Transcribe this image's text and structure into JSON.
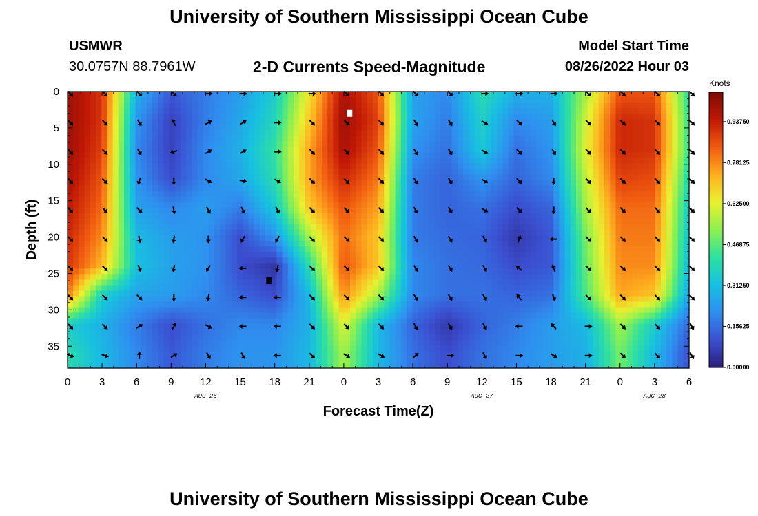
{
  "header": {
    "title": "University of Southern Mississippi Ocean Cube",
    "station_id": "USMWR",
    "station_coords": "30.0757N  88.7961W",
    "model_start_label": "Model Start Time",
    "model_start_value": "08/26/2022 Hour 03",
    "subtitle": "2-D Currents Speed-Magnitude"
  },
  "footer": {
    "title": "University of Southern Mississippi Ocean Cube"
  },
  "colors": {
    "palette": [
      "#2b1e7a",
      "#3b4fd0",
      "#2f8ff0",
      "#17c0e0",
      "#2ee0a0",
      "#8ef050",
      "#e8f030",
      "#ffb020",
      "#f05a10",
      "#c01806",
      "#7a0c06"
    ]
  },
  "chart_data": {
    "type": "heatmap",
    "title": "2-D Currents Speed-Magnitude",
    "xlabel": "Forecast Time(Z)",
    "ylabel": "Depth (ft)",
    "units_label": "Knots",
    "x_range_hours": [
      0,
      54
    ],
    "x_ticks": [
      {
        "hour": 0,
        "label": "0"
      },
      {
        "hour": 3,
        "label": "3"
      },
      {
        "hour": 6,
        "label": "6"
      },
      {
        "hour": 9,
        "label": "9"
      },
      {
        "hour": 12,
        "label": "12"
      },
      {
        "hour": 15,
        "label": "15"
      },
      {
        "hour": 18,
        "label": "18"
      },
      {
        "hour": 21,
        "label": "21"
      },
      {
        "hour": 24,
        "label": "0"
      },
      {
        "hour": 27,
        "label": "3"
      },
      {
        "hour": 30,
        "label": "6"
      },
      {
        "hour": 33,
        "label": "9"
      },
      {
        "hour": 36,
        "label": "12"
      },
      {
        "hour": 39,
        "label": "15"
      },
      {
        "hour": 42,
        "label": "18"
      },
      {
        "hour": 45,
        "label": "21"
      },
      {
        "hour": 48,
        "label": "0"
      },
      {
        "hour": 51,
        "label": "3"
      },
      {
        "hour": 54,
        "label": "6"
      }
    ],
    "date_labels": [
      {
        "hour": 12,
        "label": "AUG 26"
      },
      {
        "hour": 36,
        "label": "AUG 27"
      },
      {
        "hour": 51,
        "label": "AUG 28"
      }
    ],
    "y_range_ft": [
      0,
      38
    ],
    "y_ticks": [
      0,
      5,
      10,
      15,
      20,
      25,
      30,
      35
    ],
    "colorbar": {
      "range": [
        0,
        1.05
      ],
      "ticks": [
        {
          "value": 0.0,
          "label": "0.00000"
        },
        {
          "value": 0.15625,
          "label": "0.15625"
        },
        {
          "value": 0.3125,
          "label": "0.31250"
        },
        {
          "value": 0.46875,
          "label": "0.46875"
        },
        {
          "value": 0.625,
          "label": "0.62500"
        },
        {
          "value": 0.78125,
          "label": "0.78125"
        },
        {
          "value": 0.9375,
          "label": "0.93750"
        }
      ]
    },
    "speed_grid": {
      "x_hours": [
        0,
        3,
        6,
        9,
        12,
        15,
        18,
        21,
        24,
        27,
        30,
        33,
        36,
        39,
        42,
        45,
        48,
        51,
        54
      ],
      "depths_ft": [
        0,
        4,
        8,
        12,
        16,
        20,
        24,
        28,
        32,
        36
      ],
      "values_knots": [
        [
          1.0,
          0.9,
          0.28,
          0.12,
          0.18,
          0.24,
          0.35,
          0.65,
          0.98,
          0.85,
          0.25,
          0.2,
          0.4,
          0.28,
          0.28,
          0.55,
          0.85,
          0.85,
          0.4
        ],
        [
          1.0,
          0.9,
          0.22,
          0.08,
          0.18,
          0.26,
          0.38,
          0.7,
          1.0,
          0.88,
          0.25,
          0.18,
          0.36,
          0.2,
          0.24,
          0.6,
          0.92,
          0.9,
          0.42
        ],
        [
          1.0,
          0.88,
          0.2,
          0.08,
          0.2,
          0.28,
          0.42,
          0.75,
          0.98,
          0.85,
          0.22,
          0.16,
          0.34,
          0.16,
          0.22,
          0.62,
          0.92,
          0.9,
          0.42
        ],
        [
          0.98,
          0.85,
          0.22,
          0.1,
          0.2,
          0.26,
          0.4,
          0.75,
          0.92,
          0.8,
          0.18,
          0.14,
          0.22,
          0.14,
          0.2,
          0.58,
          0.88,
          0.86,
          0.38
        ],
        [
          0.95,
          0.82,
          0.25,
          0.2,
          0.24,
          0.18,
          0.34,
          0.7,
          0.85,
          0.75,
          0.18,
          0.14,
          0.16,
          0.1,
          0.14,
          0.55,
          0.82,
          0.82,
          0.34
        ],
        [
          0.92,
          0.78,
          0.3,
          0.24,
          0.22,
          0.1,
          0.22,
          0.55,
          0.82,
          0.7,
          0.18,
          0.15,
          0.14,
          0.06,
          0.12,
          0.5,
          0.8,
          0.8,
          0.32
        ],
        [
          0.9,
          0.72,
          0.32,
          0.25,
          0.22,
          0.1,
          0.05,
          0.4,
          0.85,
          0.7,
          0.2,
          0.16,
          0.15,
          0.1,
          0.12,
          0.48,
          0.78,
          0.78,
          0.3
        ],
        [
          0.8,
          0.35,
          0.25,
          0.24,
          0.2,
          0.14,
          0.1,
          0.3,
          0.78,
          0.55,
          0.2,
          0.16,
          0.16,
          0.14,
          0.16,
          0.45,
          0.75,
          0.7,
          0.25
        ],
        [
          0.35,
          0.28,
          0.18,
          0.1,
          0.16,
          0.2,
          0.2,
          0.28,
          0.62,
          0.3,
          0.14,
          0.06,
          0.14,
          0.18,
          0.24,
          0.3,
          0.55,
          0.35,
          0.14
        ],
        [
          0.4,
          0.3,
          0.2,
          0.12,
          0.18,
          0.22,
          0.22,
          0.3,
          0.55,
          0.3,
          0.16,
          0.1,
          0.16,
          0.2,
          0.24,
          0.28,
          0.5,
          0.3,
          0.1
        ]
      ]
    },
    "vectors": {
      "depths_ft": [
        0,
        4,
        8,
        12,
        16,
        20,
        24,
        28,
        32,
        36
      ],
      "x_hours": [
        0,
        3,
        6,
        9,
        12,
        15,
        18,
        21,
        24,
        27,
        30,
        33,
        36,
        39,
        42,
        45,
        48,
        51,
        54
      ],
      "angles_deg": [
        [
          45,
          45,
          45,
          45,
          0,
          0,
          0,
          0,
          45,
          45,
          45,
          45,
          0,
          0,
          0,
          45,
          45,
          45,
          45
        ],
        [
          45,
          45,
          60,
          -120,
          -30,
          -30,
          0,
          45,
          45,
          45,
          60,
          60,
          30,
          45,
          60,
          45,
          45,
          45,
          45
        ],
        [
          45,
          45,
          60,
          160,
          -30,
          -30,
          0,
          45,
          45,
          45,
          60,
          60,
          30,
          45,
          60,
          45,
          45,
          45,
          45
        ],
        [
          45,
          45,
          110,
          90,
          30,
          10,
          30,
          45,
          45,
          45,
          60,
          60,
          30,
          45,
          90,
          45,
          45,
          45,
          45
        ],
        [
          45,
          45,
          45,
          80,
          60,
          60,
          60,
          45,
          45,
          45,
          60,
          60,
          30,
          45,
          90,
          45,
          45,
          45,
          45
        ],
        [
          45,
          45,
          80,
          100,
          90,
          120,
          120,
          45,
          45,
          45,
          60,
          60,
          60,
          -70,
          180,
          45,
          45,
          45,
          45
        ],
        [
          45,
          45,
          70,
          100,
          120,
          180,
          100,
          45,
          45,
          45,
          60,
          60,
          60,
          -140,
          -110,
          45,
          45,
          45,
          45
        ],
        [
          45,
          45,
          45,
          90,
          100,
          180,
          180,
          45,
          45,
          45,
          60,
          60,
          60,
          -130,
          70,
          45,
          45,
          45,
          45
        ],
        [
          45,
          45,
          -30,
          -60,
          30,
          180,
          180,
          45,
          45,
          45,
          60,
          60,
          60,
          180,
          -130,
          0,
          45,
          45,
          60
        ],
        [
          20,
          20,
          -90,
          -30,
          60,
          60,
          180,
          45,
          30,
          30,
          -40,
          0,
          60,
          0,
          30,
          0,
          45,
          45,
          60
        ]
      ]
    },
    "annotations": [
      {
        "type": "white-square",
        "hour": 24.5,
        "depth": 3
      },
      {
        "type": "black-square",
        "hour": 17.5,
        "depth": 26
      }
    ]
  }
}
